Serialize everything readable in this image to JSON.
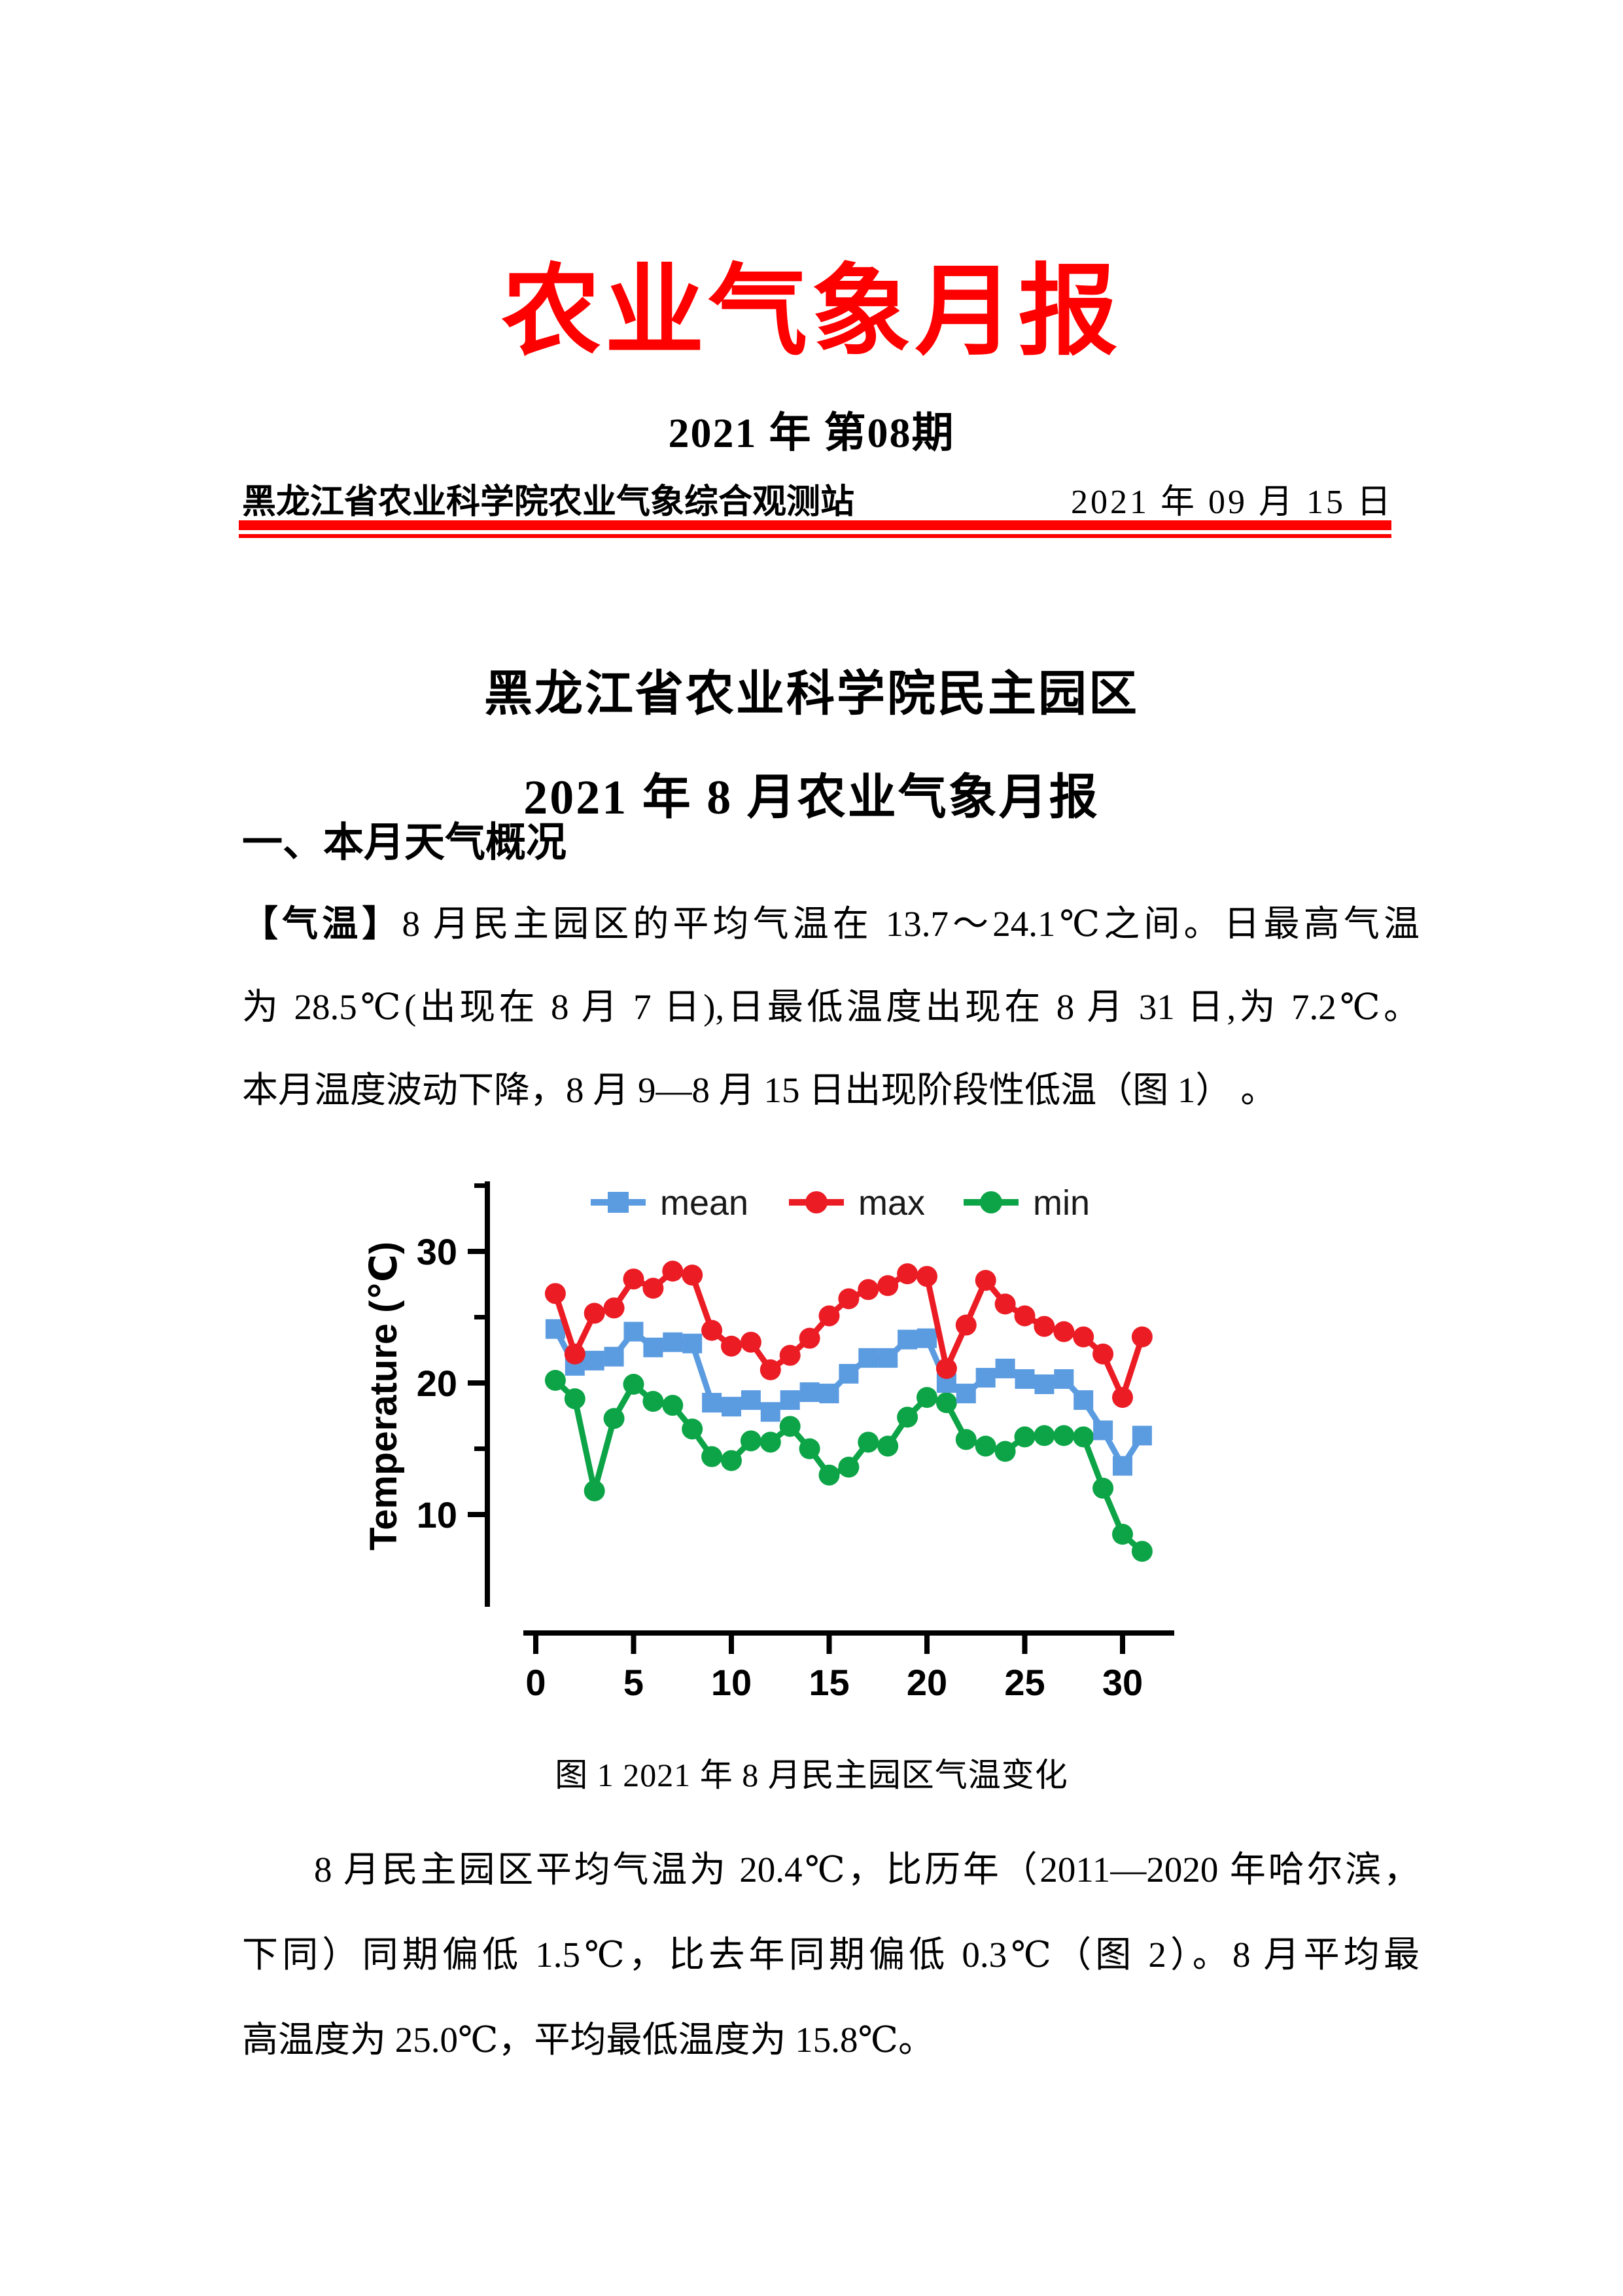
{
  "page": {
    "title": "农业气象月报",
    "issue_line": "2021 年 第08期",
    "header_left": "黑龙江省农业科学院农业气象综合观测站",
    "header_right": "2021 年 09 月 15 日"
  },
  "report": {
    "heading_line1": "黑龙江省农业科学院民主园区",
    "heading_line2": "2021 年 8 月农业气象月报",
    "section1_title": "一、本月天气概况",
    "para1_label": "【气温】",
    "para1_lines": [
      "8 月民主园区的平均气温在 13.7～24.1℃之间。日最高气温",
      "为 28.5℃(出现在 8 月 7 日),日最低温度出现在 8 月 31 日,为 7.2℃。",
      "本月温度波动下降，8 月 9—8 月 15 日出现阶段性低温（图 1） 。"
    ],
    "figure1_caption": "图 1 2021 年 8 月民主园区气温变化",
    "para2_lines": [
      "8 月民主园区平均气温为 20.4℃，比历年（2011—2020 年哈尔滨，",
      "下同）同期偏低 1.5℃，比去年同期偏低 0.3℃（图 2）。8 月平均最",
      "高温度为 25.0℃，平均最低温度为 15.8℃。"
    ]
  },
  "colors": {
    "accent_red": "#FF0000",
    "mean_blue": "#5B9BE0",
    "max_red": "#EB1C24",
    "min_green": "#0CA446"
  },
  "chart_data": {
    "type": "line",
    "title": "",
    "xlabel": "",
    "ylabel": "Temperature (℃)",
    "x": [
      1,
      2,
      3,
      4,
      5,
      6,
      7,
      8,
      9,
      10,
      11,
      12,
      13,
      14,
      15,
      16,
      17,
      18,
      19,
      20,
      21,
      22,
      23,
      24,
      25,
      26,
      27,
      28,
      29,
      30,
      31
    ],
    "series": [
      {
        "name": "mean",
        "color": "#5B9BE0",
        "marker": "square",
        "values": [
          24.1,
          21.3,
          21.7,
          22.0,
          23.9,
          22.7,
          23.1,
          23.0,
          18.5,
          18.2,
          18.7,
          17.8,
          18.7,
          19.3,
          19.2,
          20.7,
          21.9,
          21.9,
          23.3,
          23.4,
          20.0,
          19.2,
          20.4,
          21.1,
          20.3,
          19.9,
          20.3,
          18.7,
          16.4,
          13.7,
          16.0
        ]
      },
      {
        "name": "max",
        "color": "#EB1C24",
        "marker": "circle",
        "values": [
          26.8,
          22.2,
          25.3,
          25.7,
          27.9,
          27.2,
          28.5,
          28.2,
          24.0,
          22.8,
          23.1,
          21.0,
          22.1,
          23.4,
          25.1,
          26.4,
          27.1,
          27.4,
          28.3,
          28.1,
          21.1,
          24.4,
          27.8,
          26.0,
          25.1,
          24.3,
          23.9,
          23.5,
          22.2,
          18.9,
          23.5
        ]
      },
      {
        "name": "min",
        "color": "#0CA446",
        "marker": "circle",
        "values": [
          20.2,
          18.8,
          11.8,
          17.3,
          19.9,
          18.6,
          18.3,
          16.5,
          14.4,
          14.1,
          15.6,
          15.5,
          16.7,
          15.0,
          13.0,
          13.6,
          15.5,
          15.2,
          17.4,
          18.9,
          18.5,
          15.7,
          15.2,
          14.8,
          15.9,
          16.0,
          16.0,
          15.9,
          12.0,
          8.5,
          7.2
        ]
      }
    ],
    "xticks": [
      0,
      5,
      10,
      15,
      20,
      25,
      30
    ],
    "yticks_major": [
      10,
      20,
      30
    ],
    "yticks_minor": [
      15,
      25,
      35
    ],
    "xlim": [
      0,
      31.5
    ],
    "ylim": [
      6,
      35
    ],
    "grid": false,
    "legend_position": "top"
  }
}
